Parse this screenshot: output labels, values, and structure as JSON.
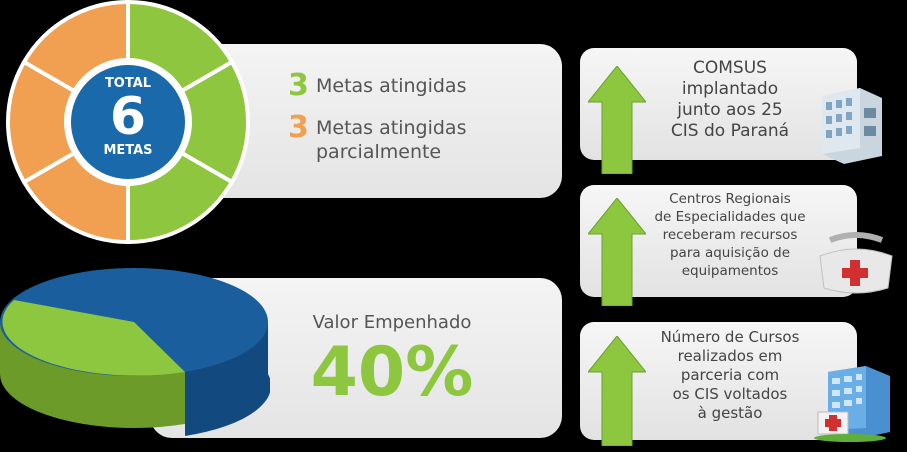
{
  "donut": {
    "total_label": "TOTAL",
    "total_value": "6",
    "metas_label": "METAS",
    "colors": {
      "green": "#8fc63f",
      "orange": "#f0a050",
      "center": "#1a6aab"
    }
  },
  "metas": {
    "achieved_count": "3",
    "achieved_label": "Metas atingidas",
    "partial_count": "3",
    "partial_label_line1": "Metas atingidas",
    "partial_label_line2": "parcialmente",
    "achieved_color": "#8dc63f",
    "partial_color": "#f0a050"
  },
  "valor": {
    "label": "Valor Empenhado",
    "percent": "40%",
    "fraction": 0.4,
    "colors": {
      "empenhado": "#8dc63f",
      "restante": "#1a5e9e"
    }
  },
  "side_items": [
    {
      "lines": [
        "COMSUS",
        "implantado",
        "junto aos 25",
        "CIS do Paraná"
      ],
      "icon": "building-icon"
    },
    {
      "lines": [
        "Centros Regionais",
        "de Especialidades que",
        "receberam recursos",
        "para aquisição de",
        "equipamentos"
      ],
      "icon": "medical-bag-icon"
    },
    {
      "lines": [
        "Número de Cursos",
        "realizados em",
        "parceria com",
        "os CIS voltados",
        "à gestão"
      ],
      "icon": "hospital-icon"
    }
  ]
}
